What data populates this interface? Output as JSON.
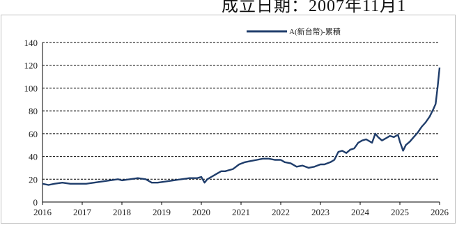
{
  "caption": "成立日期：2007年11月1",
  "chart_data": {
    "type": "line",
    "title": "",
    "xlabel": "",
    "ylabel": "",
    "legend_position": "top-center",
    "grid": "horizontal-dashed",
    "xlim": [
      2016,
      2026
    ],
    "ylim": [
      0,
      140
    ],
    "x_ticks": [
      "2016",
      "2017",
      "2018",
      "2019",
      "2020",
      "2021",
      "2022",
      "2023",
      "2024",
      "2025",
      "2026"
    ],
    "y_ticks": [
      "0",
      "20",
      "40",
      "60",
      "80",
      "100",
      "120",
      "140"
    ],
    "series": [
      {
        "name": "A(新台幣)-累積",
        "color": "#1f3d6b",
        "x": [
          2016.0,
          2016.15,
          2016.3,
          2016.5,
          2016.7,
          2016.9,
          2017.1,
          2017.3,
          2017.5,
          2017.7,
          2017.9,
          2018.0,
          2018.2,
          2018.4,
          2018.6,
          2018.75,
          2018.9,
          2019.1,
          2019.3,
          2019.5,
          2019.7,
          2019.9,
          2020.0,
          2020.08,
          2020.15,
          2020.25,
          2020.4,
          2020.5,
          2020.6,
          2020.8,
          2020.95,
          2021.1,
          2021.25,
          2021.4,
          2021.55,
          2021.7,
          2021.85,
          2022.0,
          2022.1,
          2022.25,
          2022.4,
          2022.55,
          2022.7,
          2022.85,
          2023.0,
          2023.1,
          2023.25,
          2023.35,
          2023.45,
          2023.55,
          2023.65,
          2023.75,
          2023.85,
          2023.95,
          2024.05,
          2024.15,
          2024.3,
          2024.38,
          2024.45,
          2024.55,
          2024.65,
          2024.75,
          2024.85,
          2024.95,
          2025.0,
          2025.08,
          2025.15,
          2025.25,
          2025.35,
          2025.45,
          2025.55,
          2025.65,
          2025.75,
          2025.85,
          2025.9,
          2025.95,
          2026.0
        ],
        "y": [
          16,
          15,
          16,
          17,
          16,
          16,
          16,
          17,
          18,
          19,
          20,
          19,
          20,
          21,
          20,
          17,
          17,
          18,
          19,
          20,
          21,
          21,
          22,
          17,
          20,
          22,
          25,
          27,
          27,
          29,
          33,
          35,
          36,
          37,
          38,
          38,
          37,
          37,
          35,
          34,
          31,
          32,
          30,
          31,
          33,
          33,
          35,
          37,
          44,
          45,
          43,
          46,
          47,
          52,
          54,
          55,
          52,
          60,
          57,
          54,
          56,
          58,
          57,
          59,
          53,
          45,
          50,
          53,
          57,
          61,
          66,
          70,
          75,
          82,
          86,
          101,
          118
        ]
      }
    ]
  }
}
